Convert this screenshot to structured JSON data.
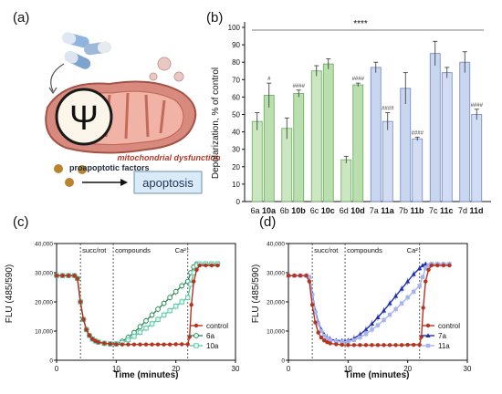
{
  "panel_labels": [
    "(a)",
    "(b)",
    "(c)",
    "(d)"
  ],
  "panel_a": {
    "symbol": "Ψ",
    "mito_label": "mitochondrial dysfunction",
    "factors_label": "proapoptotic factors",
    "apoptosis_label": "apoptosis"
  },
  "chart_data": [
    {
      "type": "bar",
      "title": "",
      "ylabel": "Depolarization, % of control",
      "ylim": [
        0,
        100
      ],
      "yticks": [
        0,
        10,
        20,
        30,
        40,
        50,
        60,
        70,
        80,
        90,
        100
      ],
      "significance_all": "****",
      "pairs": [
        {
          "label_a": "6a",
          "label_b": "10a",
          "group": "green",
          "values": [
            46,
            61
          ],
          "errors": [
            5,
            7
          ],
          "marks": [
            "",
            "#"
          ]
        },
        {
          "label_a": "6b",
          "label_b": "10b",
          "group": "green",
          "values": [
            42,
            62
          ],
          "errors": [
            6,
            2
          ],
          "marks": [
            "",
            "####"
          ]
        },
        {
          "label_a": "6c",
          "label_b": "10c",
          "group": "green",
          "values": [
            75,
            79
          ],
          "errors": [
            3,
            3
          ],
          "marks": [
            "",
            ""
          ]
        },
        {
          "label_a": "6d",
          "label_b": "10d",
          "group": "green",
          "values": [
            24,
            67
          ],
          "errors": [
            2,
            1
          ],
          "marks": [
            "",
            "####"
          ]
        },
        {
          "label_a": "7a",
          "label_b": "11a",
          "group": "blue",
          "values": [
            77,
            46
          ],
          "errors": [
            3,
            5
          ],
          "marks": [
            "",
            "####"
          ]
        },
        {
          "label_a": "7b",
          "label_b": "11b",
          "group": "blue",
          "values": [
            65,
            36
          ],
          "errors": [
            9,
            1
          ],
          "marks": [
            "",
            "####"
          ]
        },
        {
          "label_a": "7c",
          "label_b": "11c",
          "group": "blue",
          "values": [
            85,
            74
          ],
          "errors": [
            7,
            3
          ],
          "marks": [
            "",
            ""
          ]
        },
        {
          "label_a": "7d",
          "label_b": "11d",
          "group": "blue",
          "values": [
            80,
            50
          ],
          "errors": [
            6,
            3
          ],
          "marks": [
            "",
            "####"
          ]
        }
      ],
      "colors": {
        "green_a": "#cbe7c2",
        "green_b": "#b8dfad",
        "blue_a": "#c9d6ef",
        "blue_b": "#d2ddf3"
      }
    },
    {
      "type": "line",
      "xlabel": "Time (minutes)",
      "ylabel": "FLU (485/590)",
      "xlim": [
        0,
        30
      ],
      "ylim": [
        0,
        40000
      ],
      "xticks": [
        0,
        10,
        20,
        30
      ],
      "yticks": [
        "0",
        "10,000",
        "20,000",
        "30,000",
        "40,000"
      ],
      "annotations": [
        {
          "x": 4,
          "text": "succ/rot"
        },
        {
          "x": 9.5,
          "text": "compounds"
        },
        {
          "x": 22,
          "text": "Ca²⁺"
        }
      ],
      "series": [
        {
          "name": "control",
          "color": "#b5341f",
          "marker": "circle",
          "x": [
            0,
            1,
            2,
            3,
            3.5,
            4,
            4.5,
            5,
            5.5,
            6,
            6.5,
            7,
            8,
            9,
            10,
            11,
            12,
            13,
            14,
            15,
            16,
            17,
            18,
            19,
            20,
            21,
            22,
            22.3,
            22.6,
            23,
            23.5,
            24,
            25,
            26,
            27
          ],
          "y": [
            29000,
            29000,
            29000,
            29000,
            28000,
            20000,
            14000,
            10500,
            8500,
            7300,
            6600,
            6200,
            5800,
            5600,
            5500,
            5400,
            5400,
            5400,
            5400,
            5400,
            5400,
            5400,
            5400,
            5400,
            5500,
            5500,
            5500,
            8000,
            19000,
            27000,
            31000,
            32500,
            32500,
            32500,
            32500
          ]
        },
        {
          "name": "6a",
          "color": "#2e8b57",
          "marker": "circle-open",
          "x": [
            0,
            1,
            2,
            3,
            3.5,
            4,
            4.5,
            5,
            5.5,
            6,
            6.5,
            7,
            8,
            9,
            10,
            11,
            12,
            13,
            14,
            15,
            16,
            17,
            18,
            19,
            20,
            21,
            22,
            22.5,
            23,
            23.5,
            24,
            25,
            26,
            27
          ],
          "y": [
            29000,
            29000,
            29000,
            29000,
            28000,
            20000,
            14000,
            10500,
            8500,
            7300,
            6600,
            6200,
            5800,
            5600,
            5600,
            6500,
            7800,
            9500,
            11500,
            13500,
            15500,
            17500,
            19500,
            21500,
            23500,
            25500,
            27000,
            30000,
            32000,
            33000,
            33000,
            33000,
            33000,
            33000
          ]
        },
        {
          "name": "10a",
          "color": "#5cc8a8",
          "marker": "square-open",
          "x": [
            0,
            1,
            2,
            3,
            3.5,
            4,
            4.5,
            5,
            5.5,
            6,
            6.5,
            7,
            8,
            9,
            10,
            11,
            12,
            13,
            14,
            15,
            16,
            17,
            18,
            19,
            20,
            21,
            22,
            22.5,
            23,
            23.5,
            24,
            25,
            26,
            27
          ],
          "y": [
            29000,
            29000,
            29000,
            29000,
            28000,
            20000,
            14000,
            10500,
            8500,
            7300,
            6600,
            6200,
            5800,
            5600,
            5600,
            6000,
            7000,
            8200,
            9600,
            11000,
            12500,
            14000,
            15500,
            17000,
            18500,
            20000,
            21500,
            26000,
            30000,
            32500,
            33000,
            33000,
            33000,
            33000
          ]
        }
      ]
    },
    {
      "type": "line",
      "xlabel": "Time (minutes)",
      "ylabel": "FLU (485/590)",
      "xlim": [
        0,
        30
      ],
      "ylim": [
        0,
        40000
      ],
      "xticks": [
        0,
        10,
        20,
        30
      ],
      "yticks": [
        "0",
        "10,000",
        "20,000",
        "30,000",
        "40,000"
      ],
      "annotations": [
        {
          "x": 4,
          "text": "succ/rot"
        },
        {
          "x": 9.5,
          "text": "compounds"
        },
        {
          "x": 22,
          "text": "Ca²⁺"
        }
      ],
      "series": [
        {
          "name": "control",
          "color": "#b5341f",
          "marker": "circle",
          "x": [
            0,
            1,
            2,
            3,
            3.5,
            4,
            4.5,
            5,
            5.5,
            6,
            6.5,
            7,
            8,
            9,
            10,
            11,
            12,
            13,
            14,
            15,
            16,
            17,
            18,
            19,
            20,
            21,
            22,
            22.3,
            22.6,
            23,
            23.5,
            24,
            25,
            26,
            27
          ],
          "y": [
            29000,
            29000,
            29000,
            29000,
            27000,
            19000,
            13000,
            9500,
            7800,
            6800,
            6200,
            5800,
            5500,
            5300,
            5200,
            5200,
            5200,
            5200,
            5200,
            5200,
            5200,
            5200,
            5200,
            5200,
            5300,
            5300,
            5300,
            8000,
            18000,
            27000,
            31000,
            32500,
            32500,
            32500,
            32500
          ]
        },
        {
          "name": "7a",
          "color": "#1f2fb0",
          "marker": "triangle",
          "x": [
            0,
            1,
            2,
            3,
            3.5,
            4,
            4.5,
            5,
            5.5,
            6,
            6.5,
            7,
            8,
            9,
            10,
            11,
            12,
            13,
            14,
            15,
            16,
            17,
            18,
            19,
            20,
            21,
            22,
            22.5,
            23,
            24,
            25,
            26,
            27
          ],
          "y": [
            29000,
            29000,
            29000,
            29000,
            28500,
            23000,
            17000,
            13000,
            10500,
            8800,
            7800,
            7200,
            6800,
            6700,
            6800,
            7500,
            8800,
            10500,
            12500,
            14700,
            17000,
            19500,
            22000,
            24500,
            27000,
            29500,
            31500,
            32500,
            33000,
            33000,
            33000,
            33000,
            33000
          ]
        },
        {
          "name": "11a",
          "color": "#a7b3ef",
          "marker": "square",
          "x": [
            0,
            1,
            2,
            3,
            3.5,
            4,
            4.5,
            5,
            5.5,
            6,
            6.5,
            7,
            8,
            9,
            10,
            11,
            12,
            13,
            14,
            15,
            16,
            17,
            18,
            19,
            20,
            21,
            22,
            22.5,
            23,
            23.5,
            24,
            25,
            26,
            27
          ],
          "y": [
            29000,
            29000,
            29000,
            29000,
            28500,
            22500,
            16500,
            12500,
            10000,
            8400,
            7500,
            6900,
            6500,
            6400,
            6400,
            6900,
            7800,
            9000,
            10500,
            12000,
            13800,
            15600,
            17500,
            19500,
            21500,
            23500,
            25500,
            28500,
            31500,
            32500,
            33000,
            33000,
            33000,
            33000
          ]
        }
      ]
    }
  ]
}
